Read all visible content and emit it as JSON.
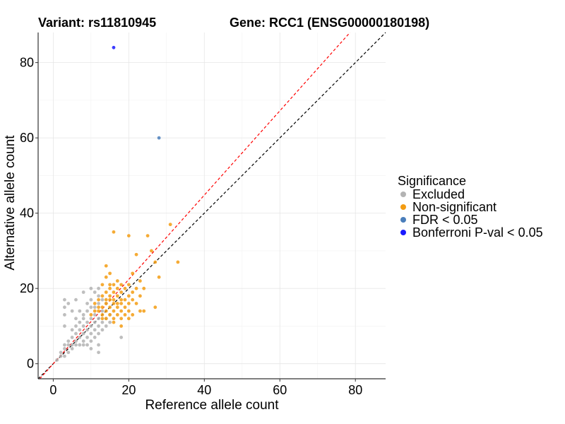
{
  "chart_data": {
    "type": "scatter",
    "title_left": "Variant: rs11810945",
    "title_right": "Gene: RCC1 (ENSG00000180198)",
    "xlabel": "Reference allele count",
    "ylabel": "Alternative allele count",
    "xlim": [
      -4,
      88
    ],
    "ylim": [
      -4,
      88
    ],
    "x_ticks": [
      0,
      20,
      40,
      60,
      80
    ],
    "y_ticks": [
      0,
      20,
      40,
      60,
      80
    ],
    "grid": true,
    "reference_lines": [
      {
        "name": "identity",
        "slope": 1.0,
        "intercept": 0,
        "color": "#000000",
        "style": "dashed"
      },
      {
        "name": "expected-ratio",
        "slope": 1.12,
        "intercept": 0,
        "color": "#ff0000",
        "style": "dashed"
      }
    ],
    "legend": {
      "title": "Significance",
      "position": "right",
      "entries": [
        {
          "label": "Excluded",
          "color": "#b3b3b3"
        },
        {
          "label": "Non-significant",
          "color": "#f39c12"
        },
        {
          "label": "FDR < 0.05",
          "color": "#4a7ebb"
        },
        {
          "label": "Bonferroni P-val < 0.05",
          "color": "#1a1aff"
        }
      ]
    },
    "series": [
      {
        "name": "Excluded",
        "color": "#b3b3b3",
        "points": [
          [
            1,
            1
          ],
          [
            2,
            2
          ],
          [
            2,
            3
          ],
          [
            3,
            2
          ],
          [
            3,
            4
          ],
          [
            3,
            5
          ],
          [
            4,
            3
          ],
          [
            4,
            5
          ],
          [
            4,
            6
          ],
          [
            5,
            4
          ],
          [
            5,
            5
          ],
          [
            5,
            7
          ],
          [
            6,
            5
          ],
          [
            6,
            6
          ],
          [
            6,
            8
          ],
          [
            7,
            5
          ],
          [
            7,
            7
          ],
          [
            7,
            9
          ],
          [
            8,
            5
          ],
          [
            8,
            6
          ],
          [
            8,
            8
          ],
          [
            8,
            10
          ],
          [
            9,
            5
          ],
          [
            9,
            7
          ],
          [
            9,
            9
          ],
          [
            9,
            11
          ],
          [
            10,
            4
          ],
          [
            10,
            6
          ],
          [
            10,
            8
          ],
          [
            10,
            10
          ],
          [
            10,
            12
          ],
          [
            11,
            7
          ],
          [
            11,
            9
          ],
          [
            11,
            11
          ],
          [
            11,
            13
          ],
          [
            12,
            3
          ],
          [
            12,
            5
          ],
          [
            12,
            8
          ],
          [
            12,
            10
          ],
          [
            12,
            12
          ],
          [
            13,
            9
          ],
          [
            13,
            11
          ],
          [
            13,
            14
          ],
          [
            14,
            10
          ],
          [
            14,
            12
          ],
          [
            14,
            16
          ],
          [
            15,
            11
          ],
          [
            15,
            13
          ],
          [
            5,
            9
          ],
          [
            6,
            10
          ],
          [
            7,
            11
          ],
          [
            8,
            12
          ],
          [
            3,
            10
          ],
          [
            3,
            13
          ],
          [
            3,
            15
          ],
          [
            3,
            17
          ],
          [
            4,
            16
          ],
          [
            5,
            14
          ],
          [
            6,
            12
          ],
          [
            7,
            14
          ],
          [
            8,
            13
          ],
          [
            9,
            14
          ],
          [
            9,
            16
          ],
          [
            10,
            15
          ],
          [
            11,
            15
          ],
          [
            12,
            16
          ],
          [
            12,
            18
          ],
          [
            6,
            17
          ],
          [
            8,
            19
          ],
          [
            10,
            17
          ],
          [
            11,
            19
          ],
          [
            13,
            17
          ],
          [
            10,
            20
          ],
          [
            12,
            20
          ],
          [
            18,
            7
          ]
        ]
      },
      {
        "name": "Non-significant",
        "color": "#f39c12",
        "points": [
          [
            10,
            13
          ],
          [
            11,
            14
          ],
          [
            11,
            16
          ],
          [
            12,
            14
          ],
          [
            12,
            15
          ],
          [
            12,
            17
          ],
          [
            13,
            13
          ],
          [
            13,
            15
          ],
          [
            13,
            18
          ],
          [
            13,
            21
          ],
          [
            14,
            14
          ],
          [
            14,
            16
          ],
          [
            14,
            17
          ],
          [
            14,
            19
          ],
          [
            14,
            23
          ],
          [
            14,
            26
          ],
          [
            15,
            13
          ],
          [
            15,
            15
          ],
          [
            15,
            17
          ],
          [
            15,
            18
          ],
          [
            15,
            20
          ],
          [
            15,
            21
          ],
          [
            15,
            24
          ],
          [
            16,
            12
          ],
          [
            16,
            14
          ],
          [
            16,
            16
          ],
          [
            16,
            17
          ],
          [
            16,
            19
          ],
          [
            16,
            21
          ],
          [
            16,
            35
          ],
          [
            17,
            13
          ],
          [
            17,
            15
          ],
          [
            17,
            16
          ],
          [
            17,
            18
          ],
          [
            17,
            20
          ],
          [
            17,
            22
          ],
          [
            18,
            12
          ],
          [
            18,
            14
          ],
          [
            18,
            16
          ],
          [
            18,
            17
          ],
          [
            18,
            19
          ],
          [
            18,
            21
          ],
          [
            19,
            13
          ],
          [
            19,
            15
          ],
          [
            19,
            17
          ],
          [
            19,
            20
          ],
          [
            20,
            12
          ],
          [
            20,
            14
          ],
          [
            20,
            16
          ],
          [
            20,
            18
          ],
          [
            20,
            21
          ],
          [
            20,
            34
          ],
          [
            21,
            13
          ],
          [
            21,
            17
          ],
          [
            21,
            19
          ],
          [
            21,
            24
          ],
          [
            22,
            16
          ],
          [
            22,
            20
          ],
          [
            22,
            29
          ],
          [
            23,
            14
          ],
          [
            23,
            18
          ],
          [
            23,
            22
          ],
          [
            24,
            14
          ],
          [
            24,
            20
          ],
          [
            25,
            34
          ],
          [
            26,
            30
          ],
          [
            27,
            15
          ],
          [
            27,
            27
          ],
          [
            28,
            23
          ],
          [
            31,
            37
          ],
          [
            33,
            27
          ],
          [
            13,
            12
          ],
          [
            14,
            12
          ],
          [
            16,
            11
          ],
          [
            18,
            10
          ]
        ]
      },
      {
        "name": "FDR < 0.05",
        "color": "#4a7ebb",
        "points": [
          [
            28,
            60
          ]
        ]
      },
      {
        "name": "Bonferroni P-val < 0.05",
        "color": "#1a1aff",
        "points": [
          [
            16,
            84
          ]
        ]
      }
    ]
  }
}
